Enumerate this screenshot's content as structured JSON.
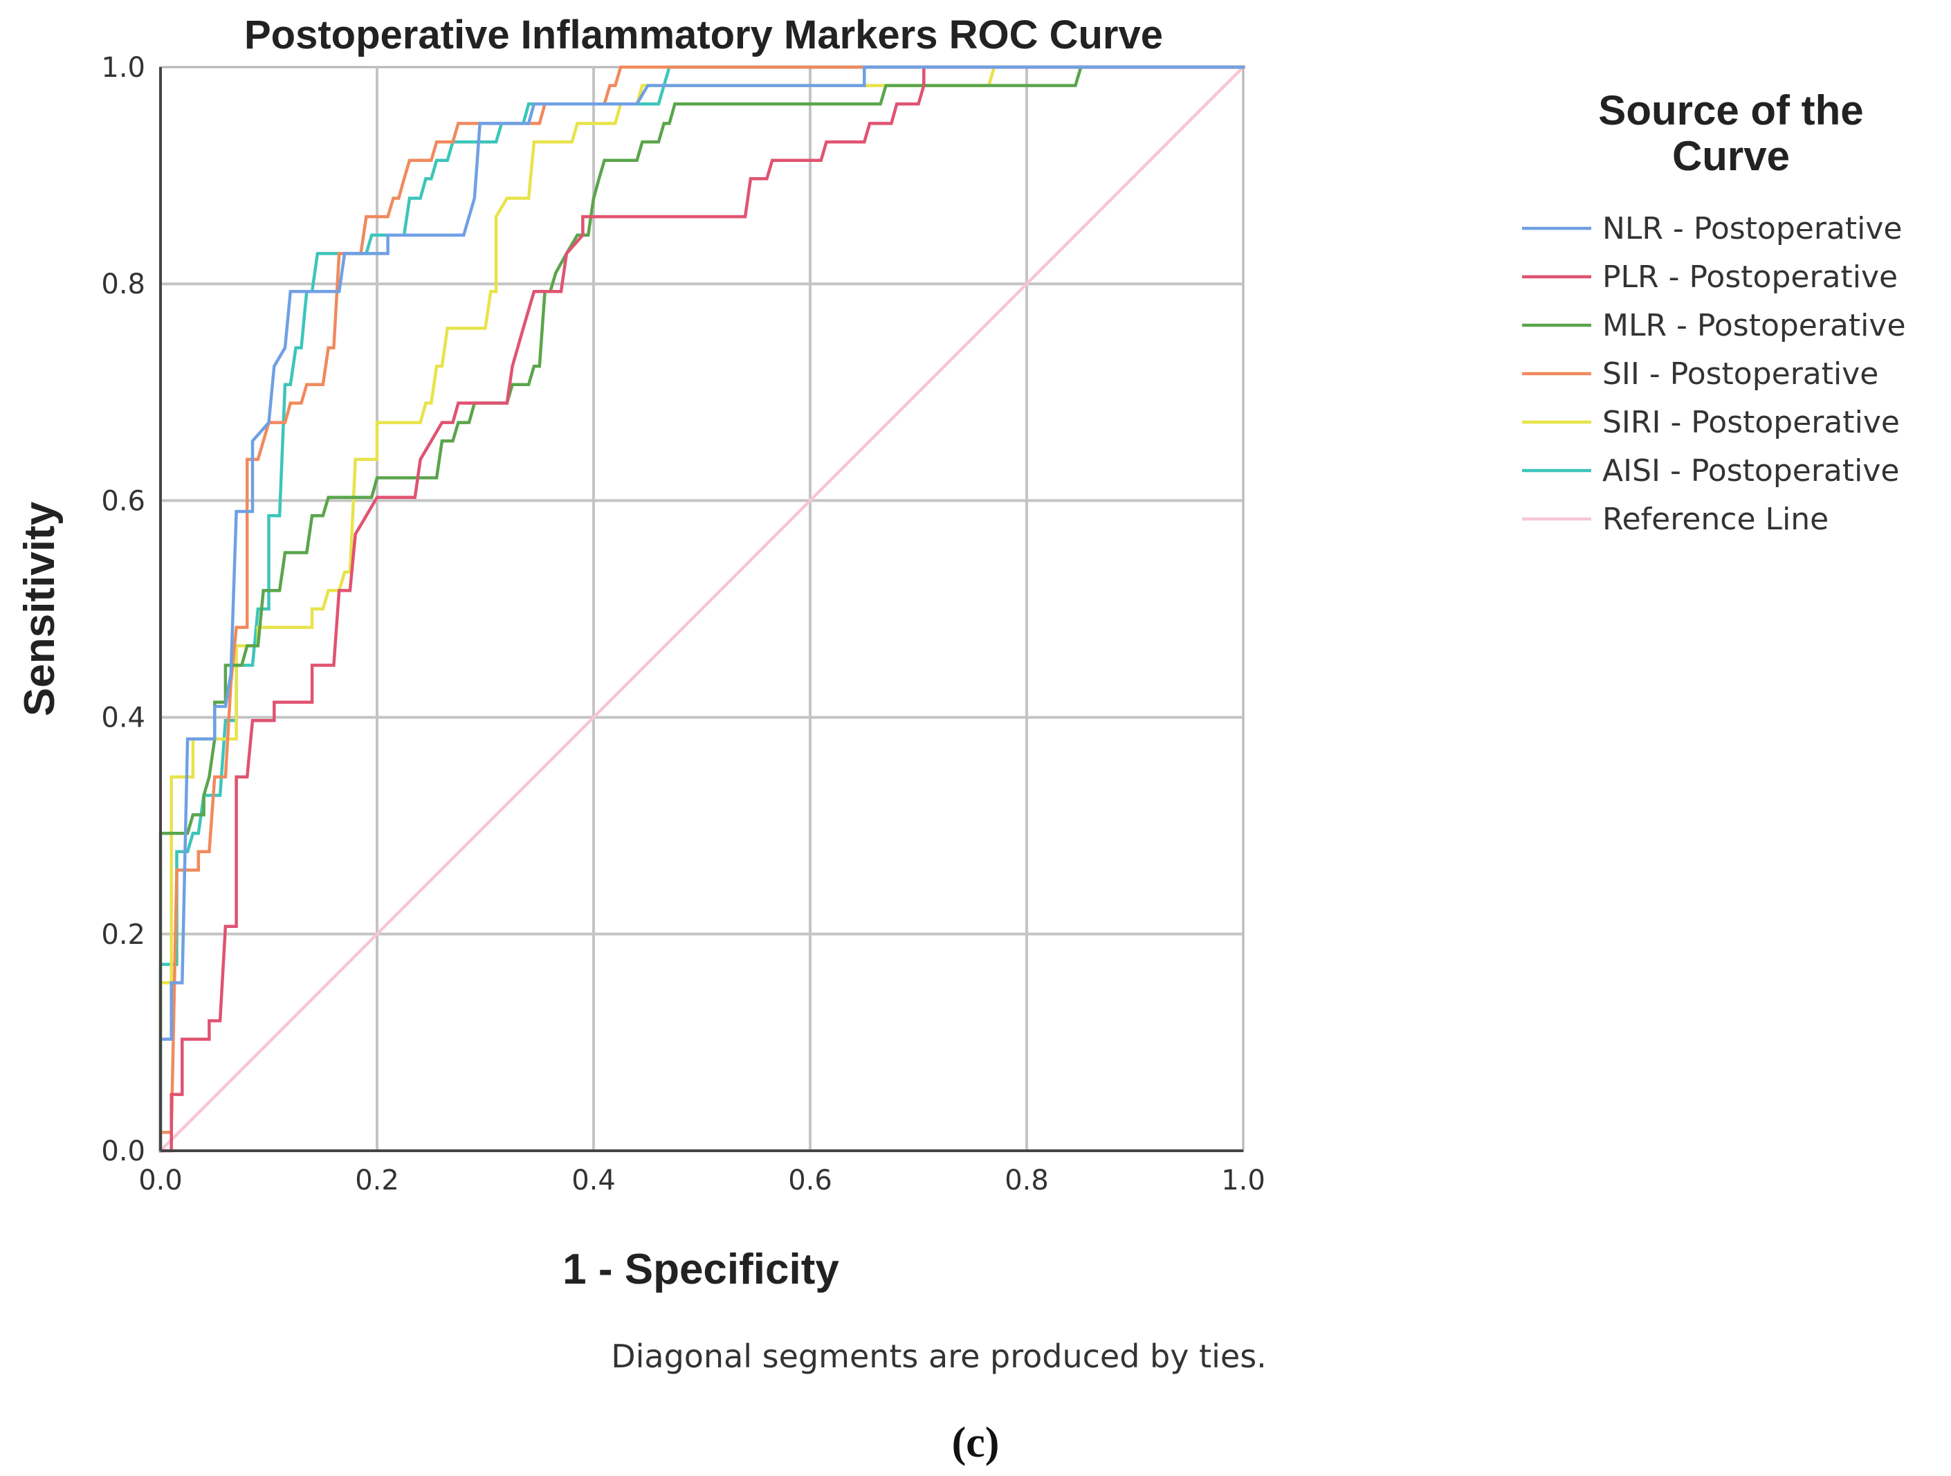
{
  "chart_data": {
    "type": "line",
    "title": "Postoperative Inflammatory Markers ROC Curve",
    "xlabel": "1 - Specificity",
    "ylabel": "Sensitivity",
    "xlim": [
      0,
      1
    ],
    "ylim": [
      0,
      1
    ],
    "x_ticks": [
      "0.0",
      "0.2",
      "0.4",
      "0.6",
      "0.8",
      "1.0"
    ],
    "y_ticks": [
      "0.0",
      "0.2",
      "0.4",
      "0.6",
      "0.8",
      "1.0"
    ],
    "grid": true,
    "legend": {
      "title_line1": "Source of the",
      "title_line2": "Curve",
      "placement": "right"
    },
    "footnote": "Diagonal segments are produced by ties.",
    "panel_label": "(c)",
    "series": [
      {
        "name": "NLR - Postoperative",
        "color": "#6fa0e4",
        "points": [
          [
            0,
            0
          ],
          [
            0,
            0.103
          ],
          [
            0.01,
            0.103
          ],
          [
            0.01,
            0.155
          ],
          [
            0.02,
            0.155
          ],
          [
            0.025,
            0.38
          ],
          [
            0.05,
            0.38
          ],
          [
            0.05,
            0.41
          ],
          [
            0.06,
            0.41
          ],
          [
            0.065,
            0.44
          ],
          [
            0.07,
            0.59
          ],
          [
            0.085,
            0.59
          ],
          [
            0.085,
            0.655
          ],
          [
            0.1,
            0.672
          ],
          [
            0.105,
            0.724
          ],
          [
            0.115,
            0.741
          ],
          [
            0.12,
            0.793
          ],
          [
            0.165,
            0.793
          ],
          [
            0.17,
            0.828
          ],
          [
            0.21,
            0.828
          ],
          [
            0.21,
            0.845
          ],
          [
            0.28,
            0.845
          ],
          [
            0.29,
            0.879
          ],
          [
            0.295,
            0.948
          ],
          [
            0.34,
            0.948
          ],
          [
            0.345,
            0.966
          ],
          [
            0.44,
            0.966
          ],
          [
            0.45,
            0.983
          ],
          [
            0.52,
            0.983
          ],
          [
            0.52,
            0.983
          ],
          [
            0.65,
            0.983
          ],
          [
            0.65,
            1
          ],
          [
            1,
            1
          ]
        ]
      },
      {
        "name": "PLR - Postoperative",
        "color": "#e05371",
        "points": [
          [
            0,
            0
          ],
          [
            0.01,
            0
          ],
          [
            0.01,
            0.052
          ],
          [
            0.02,
            0.052
          ],
          [
            0.02,
            0.103
          ],
          [
            0.045,
            0.103
          ],
          [
            0.045,
            0.12
          ],
          [
            0.055,
            0.12
          ],
          [
            0.06,
            0.207
          ],
          [
            0.07,
            0.207
          ],
          [
            0.07,
            0.345
          ],
          [
            0.08,
            0.345
          ],
          [
            0.085,
            0.397
          ],
          [
            0.105,
            0.397
          ],
          [
            0.105,
            0.414
          ],
          [
            0.14,
            0.414
          ],
          [
            0.14,
            0.448
          ],
          [
            0.16,
            0.448
          ],
          [
            0.165,
            0.517
          ],
          [
            0.175,
            0.517
          ],
          [
            0.18,
            0.569
          ],
          [
            0.19,
            0.586
          ],
          [
            0.2,
            0.603
          ],
          [
            0.235,
            0.603
          ],
          [
            0.24,
            0.638
          ],
          [
            0.25,
            0.655
          ],
          [
            0.26,
            0.672
          ],
          [
            0.27,
            0.672
          ],
          [
            0.275,
            0.69
          ],
          [
            0.32,
            0.69
          ],
          [
            0.325,
            0.724
          ],
          [
            0.335,
            0.759
          ],
          [
            0.345,
            0.793
          ],
          [
            0.37,
            0.793
          ],
          [
            0.375,
            0.828
          ],
          [
            0.39,
            0.845
          ],
          [
            0.39,
            0.862
          ],
          [
            0.54,
            0.862
          ],
          [
            0.545,
            0.897
          ],
          [
            0.56,
            0.897
          ],
          [
            0.565,
            0.914
          ],
          [
            0.61,
            0.914
          ],
          [
            0.615,
            0.931
          ],
          [
            0.65,
            0.931
          ],
          [
            0.655,
            0.948
          ],
          [
            0.675,
            0.948
          ],
          [
            0.68,
            0.966
          ],
          [
            0.7,
            0.966
          ],
          [
            0.705,
            0.983
          ],
          [
            0.705,
            1
          ],
          [
            1,
            1
          ]
        ]
      },
      {
        "name": "MLR - Postoperative",
        "color": "#5aa54c",
        "points": [
          [
            0,
            0
          ],
          [
            0,
            0.293
          ],
          [
            0.025,
            0.293
          ],
          [
            0.03,
            0.31
          ],
          [
            0.04,
            0.31
          ],
          [
            0.04,
            0.328
          ],
          [
            0.045,
            0.345
          ],
          [
            0.05,
            0.38
          ],
          [
            0.05,
            0.414
          ],
          [
            0.06,
            0.414
          ],
          [
            0.06,
            0.448
          ],
          [
            0.075,
            0.448
          ],
          [
            0.08,
            0.466
          ],
          [
            0.09,
            0.466
          ],
          [
            0.095,
            0.517
          ],
          [
            0.11,
            0.517
          ],
          [
            0.115,
            0.552
          ],
          [
            0.135,
            0.552
          ],
          [
            0.14,
            0.586
          ],
          [
            0.15,
            0.586
          ],
          [
            0.155,
            0.603
          ],
          [
            0.195,
            0.603
          ],
          [
            0.2,
            0.621
          ],
          [
            0.255,
            0.621
          ],
          [
            0.26,
            0.655
          ],
          [
            0.27,
            0.655
          ],
          [
            0.275,
            0.672
          ],
          [
            0.285,
            0.672
          ],
          [
            0.29,
            0.69
          ],
          [
            0.32,
            0.69
          ],
          [
            0.325,
            0.707
          ],
          [
            0.34,
            0.707
          ],
          [
            0.345,
            0.724
          ],
          [
            0.35,
            0.724
          ],
          [
            0.355,
            0.793
          ],
          [
            0.36,
            0.793
          ],
          [
            0.365,
            0.81
          ],
          [
            0.375,
            0.828
          ],
          [
            0.385,
            0.845
          ],
          [
            0.395,
            0.845
          ],
          [
            0.4,
            0.879
          ],
          [
            0.405,
            0.897
          ],
          [
            0.41,
            0.914
          ],
          [
            0.44,
            0.914
          ],
          [
            0.445,
            0.931
          ],
          [
            0.46,
            0.931
          ],
          [
            0.465,
            0.948
          ],
          [
            0.47,
            0.948
          ],
          [
            0.475,
            0.966
          ],
          [
            0.665,
            0.966
          ],
          [
            0.67,
            0.983
          ],
          [
            0.845,
            0.983
          ],
          [
            0.85,
            1
          ],
          [
            1,
            1
          ]
        ]
      },
      {
        "name": "SII - Postoperative",
        "color": "#f08a5d",
        "points": [
          [
            0,
            0
          ],
          [
            0,
            0.017
          ],
          [
            0.01,
            0.017
          ],
          [
            0.015,
            0.259
          ],
          [
            0.035,
            0.259
          ],
          [
            0.035,
            0.276
          ],
          [
            0.045,
            0.276
          ],
          [
            0.05,
            0.345
          ],
          [
            0.06,
            0.345
          ],
          [
            0.065,
            0.431
          ],
          [
            0.07,
            0.483
          ],
          [
            0.08,
            0.483
          ],
          [
            0.08,
            0.638
          ],
          [
            0.09,
            0.638
          ],
          [
            0.095,
            0.655
          ],
          [
            0.1,
            0.672
          ],
          [
            0.115,
            0.672
          ],
          [
            0.12,
            0.69
          ],
          [
            0.13,
            0.69
          ],
          [
            0.135,
            0.707
          ],
          [
            0.15,
            0.707
          ],
          [
            0.155,
            0.741
          ],
          [
            0.16,
            0.741
          ],
          [
            0.165,
            0.828
          ],
          [
            0.185,
            0.828
          ],
          [
            0.19,
            0.862
          ],
          [
            0.21,
            0.862
          ],
          [
            0.215,
            0.879
          ],
          [
            0.22,
            0.879
          ],
          [
            0.225,
            0.897
          ],
          [
            0.23,
            0.914
          ],
          [
            0.25,
            0.914
          ],
          [
            0.255,
            0.931
          ],
          [
            0.27,
            0.931
          ],
          [
            0.275,
            0.948
          ],
          [
            0.35,
            0.948
          ],
          [
            0.355,
            0.966
          ],
          [
            0.41,
            0.966
          ],
          [
            0.415,
            0.983
          ],
          [
            0.42,
            0.983
          ],
          [
            0.425,
            1
          ],
          [
            1,
            1
          ]
        ]
      },
      {
        "name": "SIRI - Postoperative",
        "color": "#e8e34a",
        "points": [
          [
            0,
            0
          ],
          [
            0,
            0.155
          ],
          [
            0.01,
            0.155
          ],
          [
            0.01,
            0.345
          ],
          [
            0.03,
            0.345
          ],
          [
            0.03,
            0.38
          ],
          [
            0.07,
            0.38
          ],
          [
            0.07,
            0.466
          ],
          [
            0.09,
            0.466
          ],
          [
            0.09,
            0.483
          ],
          [
            0.14,
            0.483
          ],
          [
            0.14,
            0.5
          ],
          [
            0.15,
            0.5
          ],
          [
            0.155,
            0.517
          ],
          [
            0.165,
            0.517
          ],
          [
            0.17,
            0.534
          ],
          [
            0.175,
            0.534
          ],
          [
            0.18,
            0.638
          ],
          [
            0.2,
            0.638
          ],
          [
            0.2,
            0.672
          ],
          [
            0.24,
            0.672
          ],
          [
            0.245,
            0.69
          ],
          [
            0.25,
            0.69
          ],
          [
            0.255,
            0.724
          ],
          [
            0.26,
            0.724
          ],
          [
            0.265,
            0.759
          ],
          [
            0.3,
            0.759
          ],
          [
            0.305,
            0.793
          ],
          [
            0.31,
            0.793
          ],
          [
            0.31,
            0.862
          ],
          [
            0.32,
            0.879
          ],
          [
            0.34,
            0.879
          ],
          [
            0.345,
            0.931
          ],
          [
            0.38,
            0.931
          ],
          [
            0.385,
            0.948
          ],
          [
            0.42,
            0.948
          ],
          [
            0.425,
            0.966
          ],
          [
            0.44,
            0.966
          ],
          [
            0.445,
            0.983
          ],
          [
            0.765,
            0.983
          ],
          [
            0.77,
            1
          ],
          [
            1,
            1
          ]
        ]
      },
      {
        "name": "AISI - Postoperative",
        "color": "#3cc5bb",
        "points": [
          [
            0,
            0
          ],
          [
            0,
            0.172
          ],
          [
            0.015,
            0.172
          ],
          [
            0.015,
            0.276
          ],
          [
            0.025,
            0.276
          ],
          [
            0.03,
            0.293
          ],
          [
            0.035,
            0.293
          ],
          [
            0.04,
            0.328
          ],
          [
            0.055,
            0.328
          ],
          [
            0.06,
            0.397
          ],
          [
            0.07,
            0.397
          ],
          [
            0.07,
            0.448
          ],
          [
            0.085,
            0.448
          ],
          [
            0.09,
            0.5
          ],
          [
            0.1,
            0.5
          ],
          [
            0.1,
            0.586
          ],
          [
            0.11,
            0.586
          ],
          [
            0.115,
            0.707
          ],
          [
            0.12,
            0.707
          ],
          [
            0.125,
            0.741
          ],
          [
            0.13,
            0.741
          ],
          [
            0.135,
            0.793
          ],
          [
            0.14,
            0.793
          ],
          [
            0.145,
            0.828
          ],
          [
            0.19,
            0.828
          ],
          [
            0.195,
            0.845
          ],
          [
            0.225,
            0.845
          ],
          [
            0.23,
            0.879
          ],
          [
            0.24,
            0.879
          ],
          [
            0.245,
            0.897
          ],
          [
            0.25,
            0.897
          ],
          [
            0.255,
            0.914
          ],
          [
            0.265,
            0.914
          ],
          [
            0.27,
            0.931
          ],
          [
            0.31,
            0.931
          ],
          [
            0.315,
            0.948
          ],
          [
            0.335,
            0.948
          ],
          [
            0.34,
            0.966
          ],
          [
            0.46,
            0.966
          ],
          [
            0.47,
            1
          ],
          [
            1,
            1
          ]
        ]
      },
      {
        "name": "Reference Line",
        "color": "#f7c6d3",
        "points": [
          [
            0,
            0
          ],
          [
            1,
            1
          ]
        ]
      }
    ]
  }
}
